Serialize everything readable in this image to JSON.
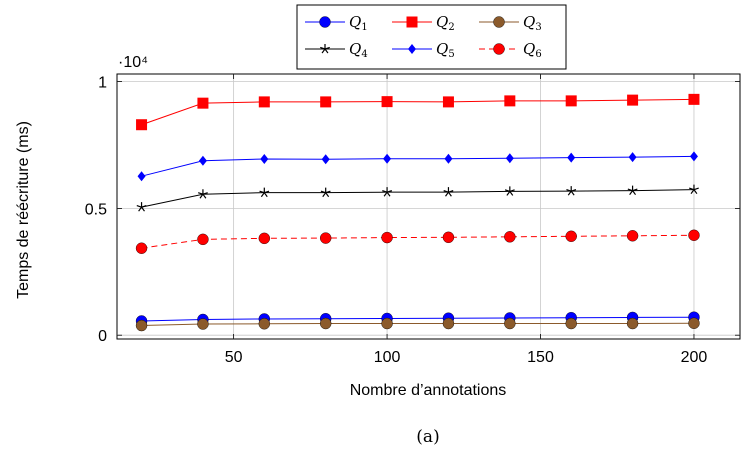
{
  "chart_data": {
    "type": "line",
    "title": "",
    "caption": "(a)",
    "xlabel": "Nombre d’annotations",
    "ylabel": "Temps de réécriture (ms)",
    "y_scale_label": "·10⁴",
    "xlim": [
      12,
      215
    ],
    "ylim": [
      -150,
      10300
    ],
    "x_ticks": [
      50,
      100,
      150,
      200
    ],
    "x_tick_labels": [
      "50",
      "100",
      "150",
      "200"
    ],
    "y_ticks": [
      0,
      5000,
      10000
    ],
    "y_tick_labels": [
      "0",
      "0.5",
      "1"
    ],
    "grid": true,
    "legend_position": "top-center",
    "x": [
      20,
      40,
      60,
      80,
      100,
      120,
      140,
      160,
      180,
      200
    ],
    "series": [
      {
        "name": "Q1",
        "label_main": "Q",
        "label_sub": "1",
        "color": "#0000ff",
        "marker": "circle",
        "dash": "solid",
        "values": [
          560,
          620,
          640,
          650,
          660,
          670,
          680,
          690,
          700,
          710
        ]
      },
      {
        "name": "Q2",
        "label_main": "Q",
        "label_sub": "2",
        "color": "#ff0000",
        "marker": "square",
        "dash": "solid",
        "values": [
          8300,
          9150,
          9200,
          9200,
          9210,
          9200,
          9240,
          9240,
          9270,
          9300
        ]
      },
      {
        "name": "Q3",
        "label_main": "Q",
        "label_sub": "3",
        "color": "#8b5a2b",
        "marker": "circle",
        "dash": "solid",
        "values": [
          380,
          440,
          450,
          460,
          460,
          460,
          460,
          460,
          460,
          470
        ]
      },
      {
        "name": "Q4",
        "label_main": "Q",
        "label_sub": "4",
        "color": "#000000",
        "marker": "star",
        "dash": "solid",
        "values": [
          5050,
          5560,
          5620,
          5620,
          5640,
          5640,
          5670,
          5680,
          5700,
          5740
        ]
      },
      {
        "name": "Q5",
        "label_main": "Q",
        "label_sub": "5",
        "color": "#0000ff",
        "marker": "diamond",
        "dash": "solid",
        "values": [
          6270,
          6880,
          6950,
          6940,
          6960,
          6960,
          6980,
          7000,
          7020,
          7050
        ]
      },
      {
        "name": "Q6",
        "label_main": "Q",
        "label_sub": "6",
        "color": "#ff0000",
        "marker": "circle",
        "dash": "dashed",
        "values": [
          3430,
          3780,
          3820,
          3830,
          3850,
          3860,
          3880,
          3900,
          3920,
          3940
        ]
      }
    ]
  }
}
